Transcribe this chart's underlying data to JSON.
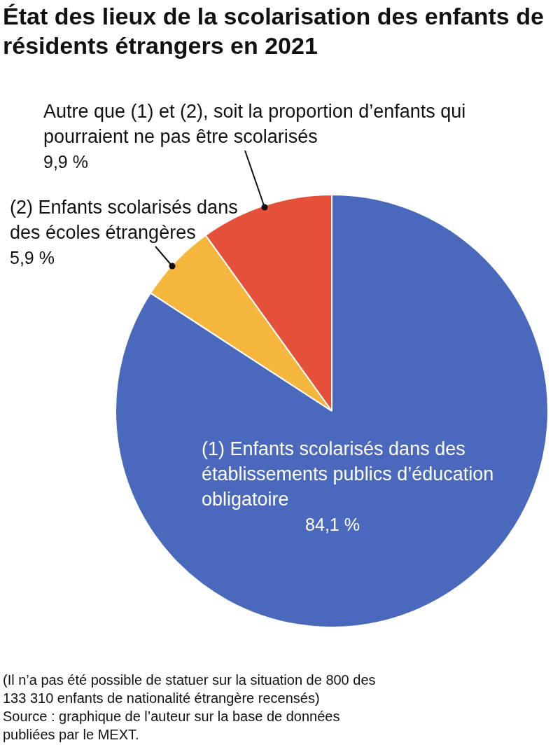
{
  "chart_data": {
    "type": "pie",
    "title": "État des lieux de la scolarisation des enfants de résidents étrangers en 2021",
    "categories": [
      "(1) Enfants scolarisés dans des établissements publics d’éducation obligatoire",
      "(2) Enfants scolarisés dans des écoles étrangères",
      "Autre que (1) et (2), soit la proportion d’enfants qui pourraient ne pas être scolarisés"
    ],
    "values": [
      84.1,
      5.9,
      9.9
    ],
    "value_labels": [
      "84,1 %",
      "5,9 %",
      "9,9 %"
    ],
    "colors": [
      "#4a69bd",
      "#f5b63e",
      "#e5503a"
    ],
    "legend": false,
    "annotations": [
      "(Il n’a pas été possible de statuer sur la situation de 800 des 133 310 enfants de nationalité étrangère recensés)",
      "Source : graphique de l’auteur sur la base de données publiées par le MEXT."
    ]
  }
}
